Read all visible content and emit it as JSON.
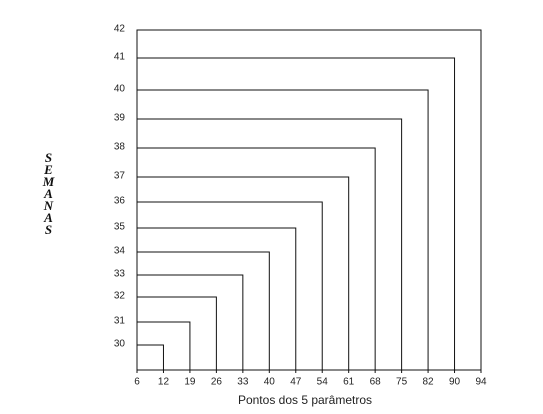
{
  "chart_data": {
    "type": "step",
    "x_label": "Pontos dos 5 parâmetros",
    "y_label": "SEMANAS",
    "xticks": [
      6,
      12,
      19,
      26,
      33,
      40,
      47,
      54,
      61,
      68,
      75,
      82,
      90,
      94
    ],
    "categories": [
      30,
      31,
      32,
      33,
      34,
      35,
      36,
      37,
      38,
      39,
      40,
      41,
      42
    ],
    "values": [
      12,
      19,
      26,
      33,
      40,
      47,
      54,
      61,
      68,
      75,
      82,
      90,
      94
    ],
    "color": "#111111"
  }
}
